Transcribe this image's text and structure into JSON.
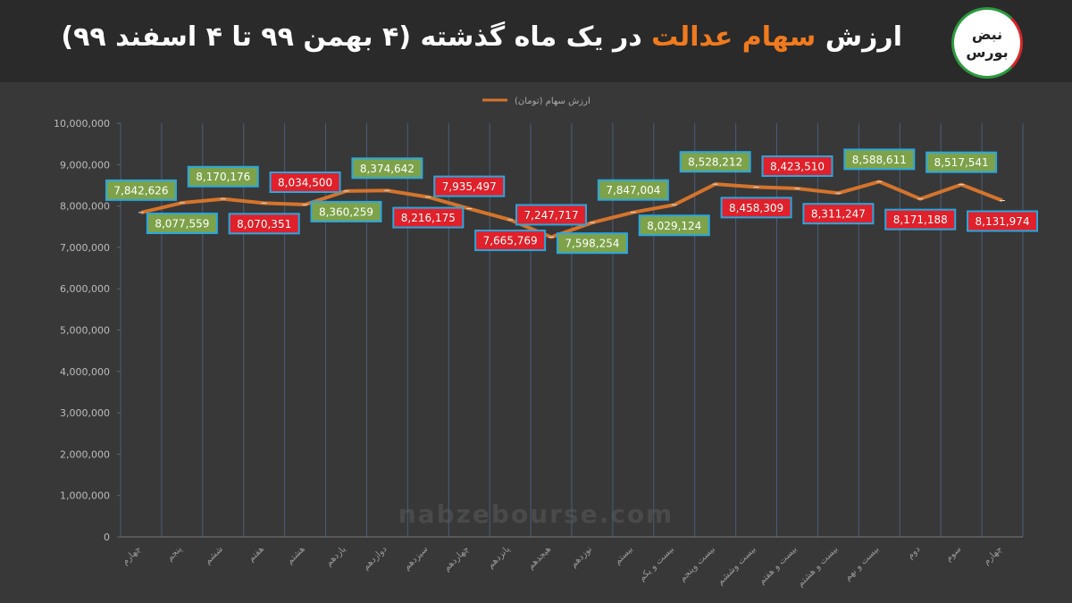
{
  "header": {
    "title_parts": [
      "ارزش",
      "سهام عدالت",
      "در یک ماه گذشته (۴ بهمن ۹۹ تا ۴ اسفند ۹۹)"
    ],
    "logo": [
      "نبض",
      "بورس"
    ]
  },
  "watermark": "nabzebourse.com",
  "chart_data": {
    "type": "line",
    "legend": "ارزش سهام (تومان)",
    "color": "#d4742c",
    "up_color": "#7da24a",
    "down_color": "#e0202a",
    "label_border": "#29a7e0",
    "categories": [
      "چهارم",
      "پنجم",
      "ششم",
      "هفتم",
      "هشتم",
      "یازدهم",
      "دوازدهم",
      "سیزدهم",
      "چهاردهم",
      "پانزدهم",
      "هیجدهم",
      "نوزدهم",
      "بیستم",
      "بیست و یکم",
      "بیست وپنجم",
      "بیست وششم",
      "بیست و هفتم",
      "بیست و هشتم",
      "بیست و نهم",
      "دوم",
      "سوم",
      "چهارم"
    ],
    "values": [
      7842626,
      8077559,
      8170176,
      8070351,
      8034500,
      8360259,
      8374642,
      8216175,
      7935497,
      7665769,
      7247717,
      7598254,
      7847004,
      8029124,
      8528212,
      8458309,
      8423510,
      8311247,
      8588611,
      8171188,
      8517541,
      8131974
    ],
    "value_labels": [
      "7,842,626",
      "8,077,559",
      "8,170,176",
      "8,070,351",
      "8,034,500",
      "8,360,259",
      "8,374,642",
      "8,216,175",
      "7,935,497",
      "7,665,769",
      "7,247,717",
      "7,598,254",
      "7,847,004",
      "8,029,124",
      "8,528,212",
      "8,458,309",
      "8,423,510",
      "8,311,247",
      "8,588,611",
      "8,171,188",
      "8,517,541",
      "8,131,974"
    ],
    "ylim": [
      0,
      10000000
    ],
    "yticks": [
      0,
      {
        "value": 1000000,
        "label": "1,000,000"
      },
      {
        "value": 2000000,
        "label": "2,000,000"
      },
      {
        "value": 3000000,
        "label": "3,000,000"
      },
      {
        "value": 4000000,
        "label": "4,000,000"
      },
      {
        "value": 5000000,
        "label": "5,000,000"
      },
      {
        "value": 6000000,
        "label": "6,000,000"
      },
      {
        "value": 7000000,
        "label": "7,000,000"
      },
      {
        "value": 8000000,
        "label": "8,000,000"
      },
      {
        "value": 9000000,
        "label": "9,000,000"
      },
      {
        "value": 10000000,
        "label": "10,000,000"
      }
    ],
    "grid": "x"
  }
}
